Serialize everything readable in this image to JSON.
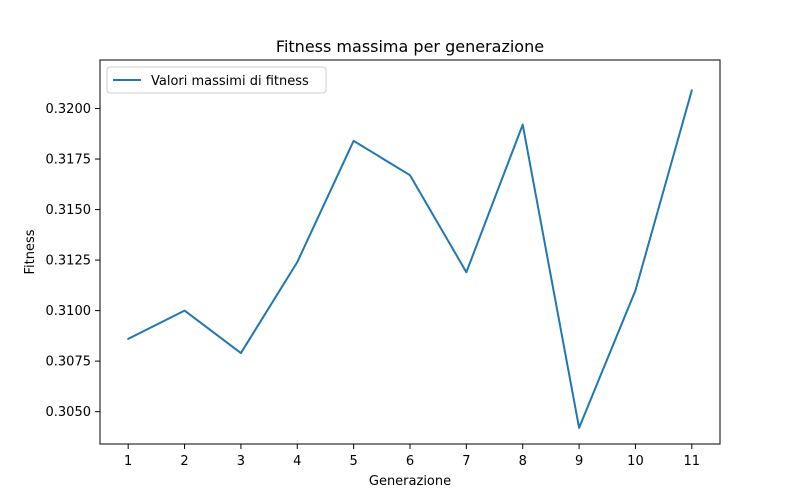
{
  "chart_data": {
    "type": "line",
    "title": "Fitness massima per generazione",
    "xlabel": "Generazione",
    "ylabel": "Fitness",
    "x": [
      1,
      2,
      3,
      4,
      5,
      6,
      7,
      8,
      9,
      10,
      11
    ],
    "x_tick_labels": [
      "1",
      "2",
      "3",
      "4",
      "5",
      "6",
      "7",
      "8",
      "9",
      "10",
      "11"
    ],
    "y_ticks": [
      0.305,
      0.3075,
      0.31,
      0.3125,
      0.315,
      0.3175,
      0.32
    ],
    "y_tick_labels": [
      "0.3050",
      "0.3075",
      "0.3100",
      "0.3125",
      "0.3150",
      "0.3175",
      "0.3200"
    ],
    "xlim": [
      0.5,
      11.5
    ],
    "ylim": [
      0.3034,
      0.3224
    ],
    "grid": false,
    "legend_position": "top-left",
    "series": [
      {
        "name": "Valori massimi di fitness",
        "color": "#1f77b4",
        "values": [
          0.3086,
          0.31,
          0.3079,
          0.3124,
          0.3184,
          0.3167,
          0.3119,
          0.3192,
          0.3042,
          0.311,
          0.3209
        ]
      }
    ]
  }
}
